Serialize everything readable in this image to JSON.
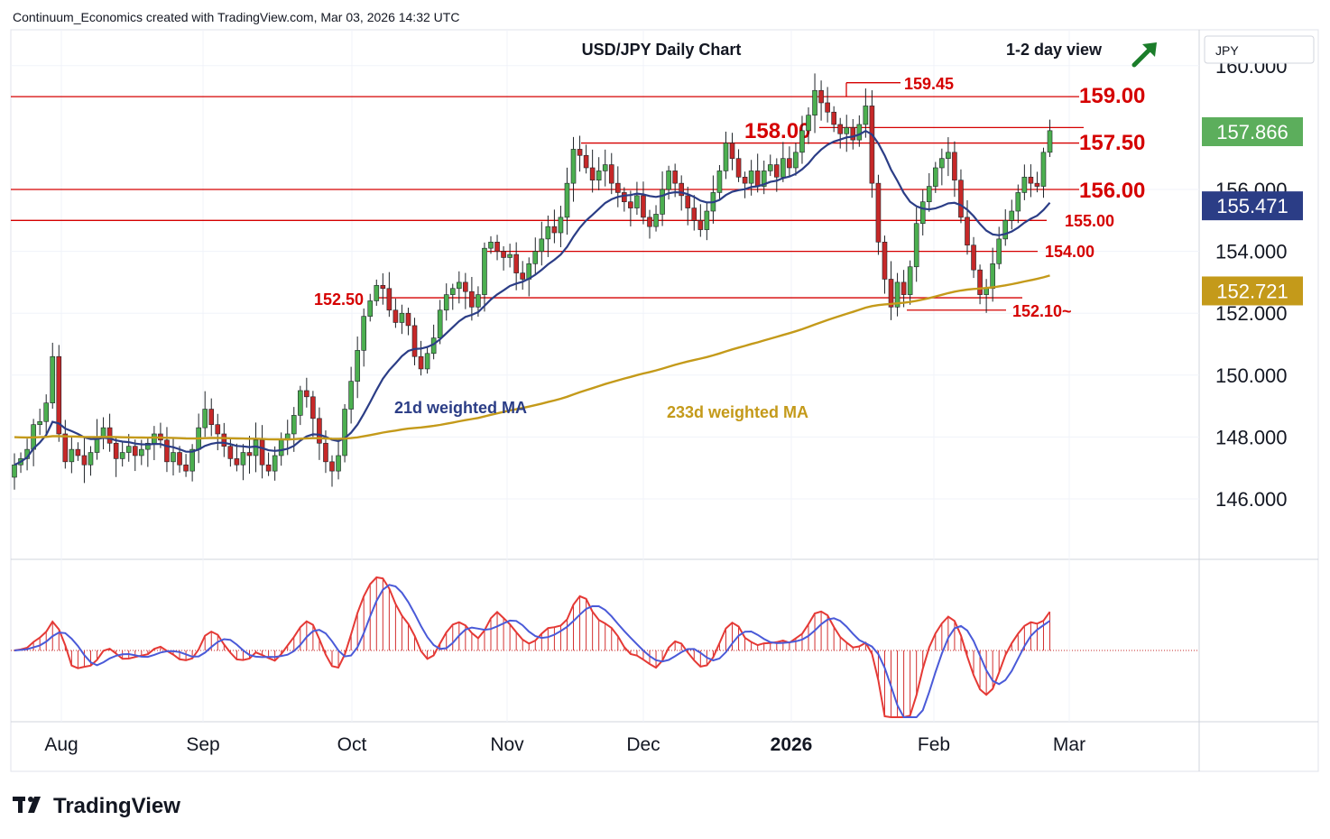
{
  "header": {
    "credit": "Continuum_Economics created with TradingView.com, Mar 03, 2026 14:32 UTC"
  },
  "footer": {
    "logo_text": "TradingView"
  },
  "chart_data": {
    "type": "candlestick",
    "title": "USD/JPY Daily Chart",
    "view_label": "1-2 day view",
    "view_arrow": "up-right-arrow",
    "currency_label": "JPY",
    "ylim": [
      144.0,
      161.0
    ],
    "y_ticks": [
      "146.000",
      "148.000",
      "150.000",
      "152.000",
      "154.000",
      "156.000",
      "160.000"
    ],
    "x_labels": [
      "Aug",
      "Sep",
      "Oct",
      "Nov",
      "Dec",
      "2026",
      "Feb",
      "Mar"
    ],
    "price_tags": [
      {
        "label": "157.866",
        "value": 157.866,
        "color": "#5cae5c"
      },
      {
        "label": "155.471",
        "value": 155.471,
        "color": "#2b3d86"
      },
      {
        "label": "152.721",
        "value": 152.721,
        "color": "#c49a1a"
      }
    ],
    "levels": [
      {
        "label": "159.00",
        "value": 159.0,
        "size": "large"
      },
      {
        "label": "158.00",
        "value": 158.0,
        "size": "large"
      },
      {
        "label": "157.50",
        "value": 157.5,
        "size": "large"
      },
      {
        "label": "156.00",
        "value": 156.0,
        "size": "large"
      },
      {
        "label": "155.00",
        "value": 155.0,
        "size": "small"
      },
      {
        "label": "154.00",
        "value": 154.0,
        "size": "small"
      },
      {
        "label": "152.50",
        "value": 152.5,
        "size": "small"
      },
      {
        "label": "152.10~",
        "value": 152.1,
        "size": "small"
      },
      {
        "label": "159.45",
        "value": 159.45,
        "size": "small"
      }
    ],
    "ma_labels": {
      "ma21": "21d weighted MA",
      "ma233": "233d weighted MA"
    },
    "colors": {
      "up": "#4caf50",
      "down": "#c62828",
      "ma21": "#2b3d86",
      "ma233": "#c49a1a",
      "level": "#d50000"
    },
    "closes": [
      147.1,
      147.3,
      147.6,
      148.4,
      148.5,
      149.1,
      150.6,
      148.1,
      147.2,
      147.6,
      147.4,
      147.1,
      147.5,
      148.0,
      148.3,
      147.8,
      147.3,
      147.5,
      147.7,
      147.4,
      147.6,
      147.8,
      148.1,
      147.9,
      147.2,
      147.5,
      147.1,
      146.9,
      147.6,
      148.3,
      148.9,
      148.4,
      148.1,
      147.7,
      147.3,
      147.1,
      147.5,
      147.4,
      147.9,
      147.1,
      146.9,
      147.4,
      147.9,
      148.1,
      148.7,
      149.5,
      149.3,
      148.6,
      147.8,
      147.2,
      146.9,
      147.4,
      148.9,
      149.8,
      150.8,
      151.9,
      152.4,
      152.9,
      152.8,
      152.1,
      151.7,
      152.0,
      151.6,
      150.6,
      150.2,
      150.7,
      151.2,
      152.1,
      152.6,
      152.8,
      153.0,
      152.7,
      152.2,
      152.6,
      154.1,
      154.3,
      154.0,
      153.8,
      153.9,
      153.3,
      153.1,
      153.6,
      154.0,
      154.4,
      154.8,
      154.6,
      155.1,
      156.2,
      157.3,
      157.1,
      156.7,
      156.3,
      156.6,
      156.8,
      156.2,
      155.9,
      155.6,
      155.4,
      155.8,
      155.1,
      154.8,
      155.2,
      156.0,
      156.6,
      156.2,
      155.8,
      155.4,
      155.0,
      154.7,
      155.3,
      155.9,
      156.6,
      157.5,
      157.0,
      156.4,
      156.2,
      156.6,
      156.1,
      156.6,
      156.8,
      156.4,
      157.0,
      156.7,
      157.2,
      157.9,
      158.4,
      159.2,
      158.8,
      158.5,
      158.1,
      157.8,
      158.0,
      157.6,
      158.1,
      158.7,
      156.2,
      154.3,
      153.1,
      152.2,
      153.0,
      152.6,
      153.5,
      154.9,
      155.6,
      156.1,
      156.7,
      157.0,
      157.2,
      156.3,
      155.1,
      154.2,
      153.4,
      152.6,
      152.8,
      153.6,
      154.4,
      155.0,
      155.3,
      155.9,
      156.4,
      156.2,
      156.1,
      157.2,
      157.9
    ]
  }
}
